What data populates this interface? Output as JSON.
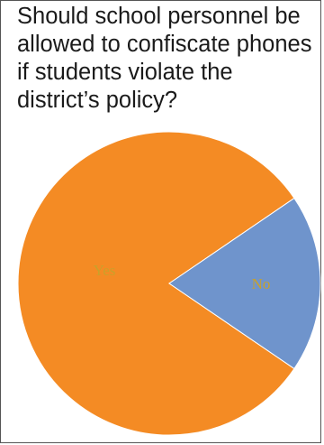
{
  "chart_data": {
    "type": "pie",
    "title": "Should school personnel be allowed to confiscate phones if students violate the district’s policy?",
    "categories": [
      "Yes",
      "No"
    ],
    "values": [
      81,
      19
    ],
    "colors": [
      "#F48B24",
      "#6F94CC"
    ],
    "label_color": "#C9A12A"
  }
}
